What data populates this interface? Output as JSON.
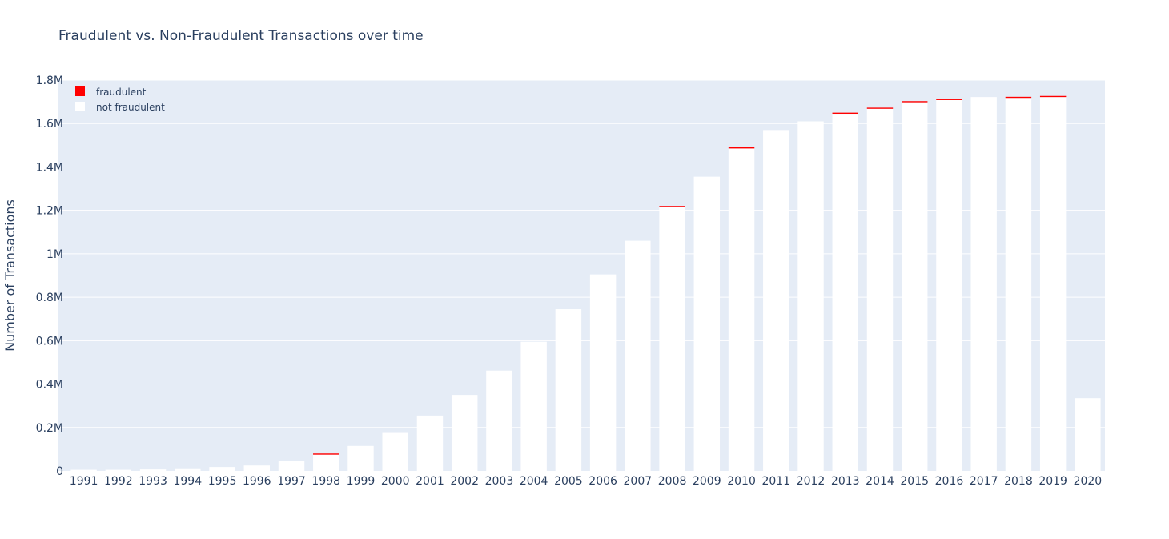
{
  "chart_data": {
    "type": "bar",
    "barmode": "stack",
    "title": "Fraudulent vs. Non-Fraudulent Transactions over time",
    "xlabel": "",
    "ylabel": "Number of Transactions",
    "ylim": [
      0,
      1800000
    ],
    "y_ticks": [
      {
        "value": 0,
        "label": "0"
      },
      {
        "value": 200000,
        "label": "0.2M"
      },
      {
        "value": 400000,
        "label": "0.4M"
      },
      {
        "value": 600000,
        "label": "0.6M"
      },
      {
        "value": 800000,
        "label": "0.8M"
      },
      {
        "value": 1000000,
        "label": "1M"
      },
      {
        "value": 1200000,
        "label": "1.2M"
      },
      {
        "value": 1400000,
        "label": "1.4M"
      },
      {
        "value": 1600000,
        "label": "1.6M"
      },
      {
        "value": 1800000,
        "label": "1.8M"
      }
    ],
    "grid": true,
    "legend_position": "top-left",
    "categories": [
      "1991",
      "1992",
      "1993",
      "1994",
      "1995",
      "1996",
      "1997",
      "1998",
      "1999",
      "2000",
      "2001",
      "2002",
      "2003",
      "2004",
      "2005",
      "2006",
      "2007",
      "2008",
      "2009",
      "2010",
      "2011",
      "2012",
      "2013",
      "2014",
      "2015",
      "2016",
      "2017",
      "2018",
      "2019",
      "2020"
    ],
    "series": [
      {
        "name": "not fraudulent",
        "color": "#ffffff",
        "values": [
          1000,
          3000,
          7000,
          12000,
          18000,
          25000,
          48000,
          75000,
          115000,
          175000,
          255000,
          350000,
          462000,
          595000,
          745000,
          905000,
          1060000,
          1215000,
          1355000,
          1485000,
          1570000,
          1610000,
          1645000,
          1668000,
          1698000,
          1708000,
          1722000,
          1718000,
          1722000,
          335000
        ]
      },
      {
        "name": "fraudulent",
        "color": "#ff0000",
        "values": [
          0,
          0,
          0,
          0,
          0,
          0,
          0,
          4000,
          0,
          0,
          0,
          0,
          0,
          0,
          0,
          0,
          0,
          3000,
          0,
          3000,
          0,
          0,
          5000,
          4000,
          3000,
          3000,
          0,
          2000,
          3000,
          0
        ]
      }
    ],
    "legend": [
      {
        "name": "fraudulent",
        "color": "#ff0000"
      },
      {
        "name": "not fraudulent",
        "color": "#ffffff"
      }
    ],
    "colors": {
      "plot_background": "#e5ecf6",
      "gridline": "#ffffff",
      "text": "#2a3f5f"
    }
  }
}
